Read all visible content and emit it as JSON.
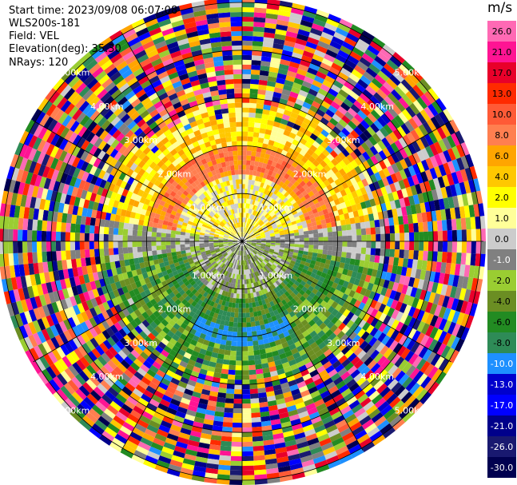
{
  "header": {
    "start_time": "Start time: 2023/09/08 06:07:08",
    "instrument": "WLS200s-181",
    "field": "Field: VEL",
    "elevation": "Elevation(deg): 35.30",
    "nrays": "NRays: 120"
  },
  "chart_data": {
    "type": "heatmap",
    "projection": "polar-ppi",
    "field": "VEL",
    "units": "m/s",
    "nrays": 120,
    "range_rings_km": [
      1.0,
      2.0,
      3.0,
      4.0,
      5.0
    ],
    "ring_labels": [
      "1.00km",
      "2.00km",
      "3.00km",
      "4.00km",
      "5.00km"
    ],
    "colorbar": {
      "title": "m/s",
      "ticks": [
        "26.0",
        "21.0",
        "17.0",
        "13.0",
        "10.0",
        "8.0",
        "6.0",
        "4.0",
        "2.0",
        "1.0",
        "0.0",
        "-1.0",
        "-2.0",
        "-4.0",
        "-6.0",
        "-8.0",
        "-10.0",
        "-13.0",
        "-17.0",
        "-21.0",
        "-26.0",
        "-30.0"
      ],
      "colors": [
        "#ff69b4",
        "#ff1493",
        "#e8002a",
        "#ff2a00",
        "#ff5a36",
        "#ff7f50",
        "#ffa500",
        "#ffc800",
        "#ffff00",
        "#ffff99",
        "#cccccc",
        "#808080",
        "#9acd32",
        "#6b8e23",
        "#228b22",
        "#2e8b57",
        "#1e90ff",
        "#0000cd",
        "#0000ff",
        "#00008b",
        "#191970",
        "#000050"
      ],
      "label_colors": [
        "#000000",
        "#000000",
        "#000000",
        "#000000",
        "#000000",
        "#000000",
        "#000000",
        "#000000",
        "#000000",
        "#000000",
        "#000000",
        "#ffffff",
        "#000000",
        "#000000",
        "#000000",
        "#000000",
        "#ffffff",
        "#ffffff",
        "#ffffff",
        "#ffffff",
        "#ffffff",
        "#ffffff"
      ]
    },
    "grid": true
  }
}
